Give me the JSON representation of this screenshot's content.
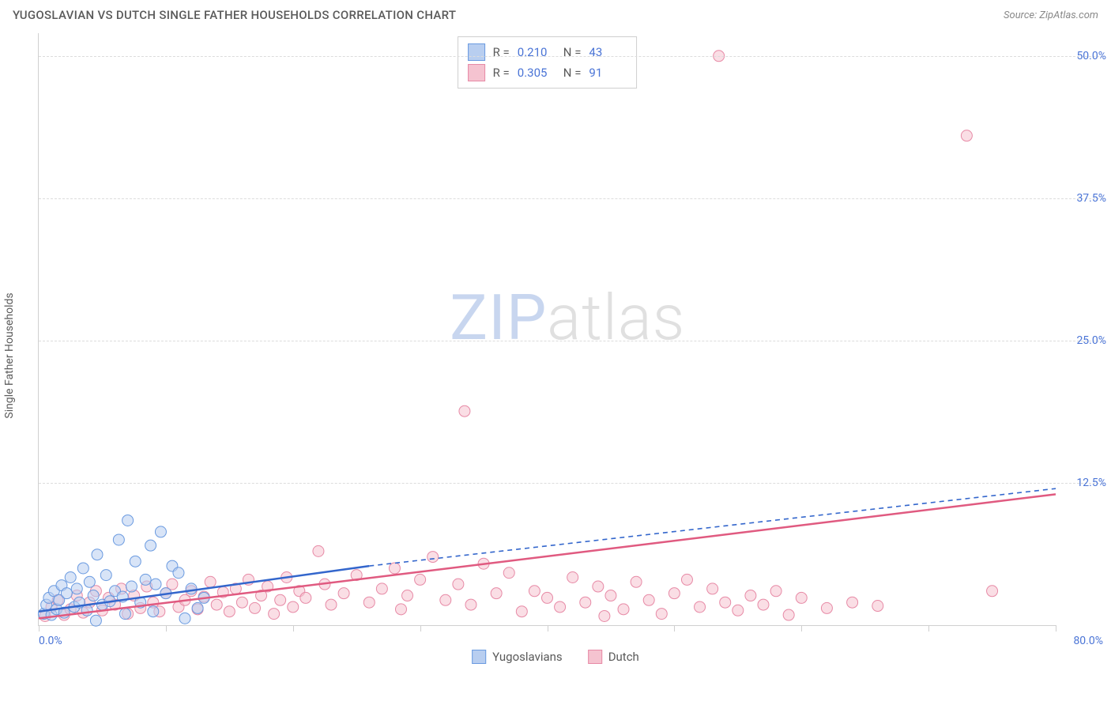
{
  "title": "YUGOSLAVIAN VS DUTCH SINGLE FATHER HOUSEHOLDS CORRELATION CHART",
  "source": "Source: ZipAtlas.com",
  "y_axis_label": "Single Father Households",
  "watermark": {
    "part1": "ZIP",
    "part2": "atlas"
  },
  "colors": {
    "blue_fill": "#b8cef0",
    "blue_stroke": "#6a9ae0",
    "blue_line": "#3366cc",
    "pink_fill": "#f5c3d0",
    "pink_stroke": "#e78aa6",
    "pink_line": "#e05a80",
    "tick_label": "#4a74d6",
    "text": "#5a5a5a",
    "grid": "#dcdcdc"
  },
  "chart": {
    "type": "scatter",
    "xlim": [
      0,
      80
    ],
    "ylim": [
      0,
      52
    ],
    "x_ticks": [
      0,
      10,
      20,
      30,
      40,
      50,
      60,
      70,
      80
    ],
    "x_tick_labels": {
      "0": "0.0%",
      "80": "80.0%"
    },
    "y_ticks": [
      12.5,
      25.0,
      37.5,
      50.0
    ],
    "y_tick_labels": [
      "12.5%",
      "25.0%",
      "37.5%",
      "50.0%"
    ],
    "marker_radius": 7,
    "marker_opacity": 0.55,
    "line_width_solid": 2.5,
    "line_width_dash": 1.6
  },
  "legend_stats": [
    {
      "series": "yugoslavians",
      "r_label": "R  =",
      "r": "0.210",
      "n_label": "N  =",
      "n": "43"
    },
    {
      "series": "dutch",
      "r_label": "R  =",
      "r": "0.305",
      "n_label": "N  =",
      "n": "91"
    }
  ],
  "bottom_legend": [
    {
      "series": "yugoslavians",
      "label": "Yugoslavians"
    },
    {
      "series": "dutch",
      "label": "Dutch"
    }
  ],
  "trend_lines": {
    "blue_solid": {
      "x1": 0,
      "y1": 1.2,
      "x2": 26,
      "y2": 5.2
    },
    "blue_dashed": {
      "x1": 26,
      "y1": 5.2,
      "x2": 80,
      "y2": 12.0
    },
    "pink_solid": {
      "x1": 0,
      "y1": 0.6,
      "x2": 80,
      "y2": 11.5
    }
  },
  "series": {
    "yugoslavians": [
      [
        0.4,
        1.0
      ],
      [
        0.6,
        1.8
      ],
      [
        0.8,
        2.4
      ],
      [
        1.0,
        0.9
      ],
      [
        1.2,
        3.0
      ],
      [
        1.4,
        1.4
      ],
      [
        1.6,
        2.2
      ],
      [
        1.8,
        3.5
      ],
      [
        2.0,
        1.1
      ],
      [
        2.2,
        2.8
      ],
      [
        2.5,
        4.2
      ],
      [
        2.8,
        1.6
      ],
      [
        3.0,
        3.2
      ],
      [
        3.2,
        2.0
      ],
      [
        3.5,
        5.0
      ],
      [
        3.8,
        1.3
      ],
      [
        4.0,
        3.8
      ],
      [
        4.3,
        2.6
      ],
      [
        4.6,
        6.2
      ],
      [
        5.0,
        1.8
      ],
      [
        5.3,
        4.4
      ],
      [
        5.6,
        2.1
      ],
      [
        6.0,
        3.0
      ],
      [
        6.3,
        7.5
      ],
      [
        6.6,
        2.5
      ],
      [
        7.0,
        9.2
      ],
      [
        7.3,
        3.4
      ],
      [
        7.6,
        5.6
      ],
      [
        8.0,
        2.0
      ],
      [
        8.4,
        4.0
      ],
      [
        8.8,
        7.0
      ],
      [
        9.2,
        3.6
      ],
      [
        9.6,
        8.2
      ],
      [
        10.0,
        2.8
      ],
      [
        10.5,
        5.2
      ],
      [
        11.0,
        4.6
      ],
      [
        11.5,
        0.6
      ],
      [
        12.0,
        3.2
      ],
      [
        12.5,
        1.5
      ],
      [
        13.0,
        2.4
      ],
      [
        4.5,
        0.4
      ],
      [
        6.8,
        1.0
      ],
      [
        9.0,
        1.2
      ]
    ],
    "dutch": [
      [
        0.5,
        0.8
      ],
      [
        1.0,
        1.6
      ],
      [
        1.5,
        2.2
      ],
      [
        2.0,
        0.9
      ],
      [
        2.5,
        1.4
      ],
      [
        3.0,
        2.6
      ],
      [
        3.5,
        1.1
      ],
      [
        4.0,
        2.0
      ],
      [
        4.5,
        3.0
      ],
      [
        5.0,
        1.3
      ],
      [
        5.5,
        2.4
      ],
      [
        6.0,
        1.8
      ],
      [
        6.5,
        3.2
      ],
      [
        7.0,
        1.0
      ],
      [
        7.5,
        2.6
      ],
      [
        8.0,
        1.5
      ],
      [
        8.5,
        3.4
      ],
      [
        9.0,
        2.0
      ],
      [
        9.5,
        1.2
      ],
      [
        10.0,
        2.8
      ],
      [
        10.5,
        3.6
      ],
      [
        11.0,
        1.6
      ],
      [
        11.5,
        2.2
      ],
      [
        12.0,
        3.0
      ],
      [
        12.5,
        1.4
      ],
      [
        13.0,
        2.5
      ],
      [
        13.5,
        3.8
      ],
      [
        14.0,
        1.8
      ],
      [
        14.5,
        2.9
      ],
      [
        15.0,
        1.2
      ],
      [
        15.5,
        3.2
      ],
      [
        16.0,
        2.0
      ],
      [
        16.5,
        4.0
      ],
      [
        17.0,
        1.5
      ],
      [
        17.5,
        2.6
      ],
      [
        18.0,
        3.4
      ],
      [
        18.5,
        1.0
      ],
      [
        19.0,
        2.2
      ],
      [
        19.5,
        4.2
      ],
      [
        20.0,
        1.6
      ],
      [
        20.5,
        3.0
      ],
      [
        21.0,
        2.4
      ],
      [
        22.0,
        6.5
      ],
      [
        22.5,
        3.6
      ],
      [
        23.0,
        1.8
      ],
      [
        24.0,
        2.8
      ],
      [
        25.0,
        4.4
      ],
      [
        26.0,
        2.0
      ],
      [
        27.0,
        3.2
      ],
      [
        28.0,
        5.0
      ],
      [
        28.5,
        1.4
      ],
      [
        29.0,
        2.6
      ],
      [
        30.0,
        4.0
      ],
      [
        31.0,
        6.0
      ],
      [
        32.0,
        2.2
      ],
      [
        33.0,
        3.6
      ],
      [
        33.5,
        18.8
      ],
      [
        34.0,
        1.8
      ],
      [
        35.0,
        5.4
      ],
      [
        36.0,
        2.8
      ],
      [
        37.0,
        4.6
      ],
      [
        38.0,
        1.2
      ],
      [
        39.0,
        3.0
      ],
      [
        40.0,
        2.4
      ],
      [
        41.0,
        1.6
      ],
      [
        42.0,
        4.2
      ],
      [
        43.0,
        2.0
      ],
      [
        44.0,
        3.4
      ],
      [
        44.5,
        0.8
      ],
      [
        45.0,
        2.6
      ],
      [
        46.0,
        1.4
      ],
      [
        47.0,
        3.8
      ],
      [
        48.0,
        2.2
      ],
      [
        49.0,
        1.0
      ],
      [
        50.0,
        2.8
      ],
      [
        51.0,
        4.0
      ],
      [
        52.0,
        1.6
      ],
      [
        53.0,
        3.2
      ],
      [
        53.5,
        50.0
      ],
      [
        54.0,
        2.0
      ],
      [
        55.0,
        1.3
      ],
      [
        56.0,
        2.6
      ],
      [
        57.0,
        1.8
      ],
      [
        58.0,
        3.0
      ],
      [
        59.0,
        0.9
      ],
      [
        60.0,
        2.4
      ],
      [
        62.0,
        1.5
      ],
      [
        64.0,
        2.0
      ],
      [
        66.0,
        1.7
      ],
      [
        73.0,
        43.0
      ],
      [
        75.0,
        3.0
      ]
    ]
  }
}
